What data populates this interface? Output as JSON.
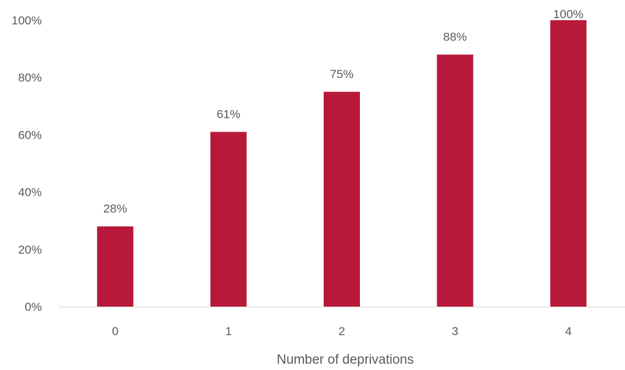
{
  "chart_data": {
    "type": "bar",
    "categories": [
      "0",
      "1",
      "2",
      "3",
      "4"
    ],
    "values": [
      28,
      61,
      75,
      88,
      100
    ],
    "value_labels": [
      "28%",
      "61%",
      "75%",
      "88%",
      "100%"
    ],
    "xlabel": "Number of deprivations",
    "ylabel": "",
    "ylim": [
      0,
      100
    ],
    "yticks": [
      0,
      20,
      40,
      60,
      80,
      100
    ],
    "ytick_labels": [
      "0%",
      "20%",
      "40%",
      "60%",
      "80%",
      "100%"
    ],
    "bar_color": "#b8193a",
    "grid": false,
    "legend": "none"
  }
}
